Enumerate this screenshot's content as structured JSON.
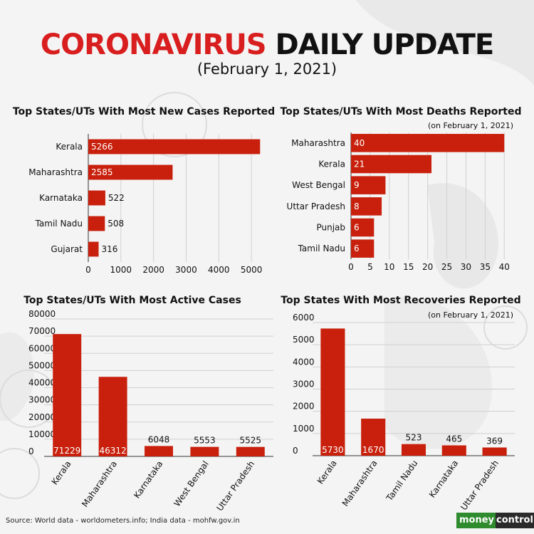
{
  "header": {
    "title_red": "CORONAVIRUS",
    "title_black": "DAILY UPDATE",
    "subtitle": "(February 1, 2021)"
  },
  "footer": {
    "source": "Source: World data - worldometers.info; India data - mohfw.gov.in",
    "logo_money": "money",
    "logo_control": "control"
  },
  "colors": {
    "bar": "#c8200c",
    "accent": "#d81e1e",
    "grid": "#d0d0d0"
  },
  "chart_data": [
    {
      "id": "new-cases",
      "type": "bar",
      "orientation": "horizontal",
      "title": "Top States/UTs With Most New Cases Reported",
      "note": "",
      "categories": [
        "Kerala",
        "Maharashtra",
        "Karnataka",
        "Tamil Nadu",
        "Gujarat"
      ],
      "values": [
        5266,
        2585,
        522,
        508,
        316
      ],
      "value_labels": [
        "5266",
        "2585",
        "522",
        "508",
        "316"
      ],
      "xlim": [
        0,
        5500
      ],
      "ticks": [
        0,
        1000,
        2000,
        3000,
        4000,
        5000
      ],
      "tick_labels": [
        "0",
        "1000",
        "2000",
        "3000",
        "4000",
        "5000"
      ],
      "grid": true
    },
    {
      "id": "deaths",
      "type": "bar",
      "orientation": "horizontal",
      "title": "Top States/UTs With Most Deaths Reported",
      "note": "(on February 1, 2021)",
      "categories": [
        "Maharashtra",
        "Kerala",
        "West Bengal",
        "Uttar Pradesh",
        "Punjab",
        "Tamil Nadu"
      ],
      "values": [
        40,
        21,
        9,
        8,
        6,
        6
      ],
      "value_labels": [
        "40",
        "21",
        "9",
        "8",
        "6",
        "6"
      ],
      "xlim": [
        0,
        42
      ],
      "ticks": [
        0,
        5,
        10,
        15,
        20,
        25,
        30,
        35,
        40
      ],
      "tick_labels": [
        "0",
        "5",
        "10",
        "15",
        "20",
        "25",
        "30",
        "35",
        "40"
      ],
      "grid": true
    },
    {
      "id": "active-cases",
      "type": "bar",
      "orientation": "vertical",
      "title": "Top States/UTs With Most Active Cases",
      "note": "",
      "categories": [
        "Kerala",
        "Maharashtra",
        "Karnataka",
        "West Bengal",
        "Uttar Pradesh"
      ],
      "values": [
        71229,
        46312,
        6048,
        5553,
        5525
      ],
      "value_labels": [
        "71229",
        "46312",
        "6048",
        "5553",
        "5525"
      ],
      "ylim": [
        0,
        80000
      ],
      "ticks": [
        0,
        10000,
        20000,
        30000,
        40000,
        50000,
        60000,
        70000,
        80000
      ],
      "tick_labels": [
        "0",
        "10000",
        "20000",
        "30000",
        "40000",
        "50000",
        "60000",
        "70000",
        "80000"
      ],
      "grid": true
    },
    {
      "id": "recoveries",
      "type": "bar",
      "orientation": "vertical",
      "title": "Top States With Most Recoveries Reported",
      "note": "(on February 1, 2021)",
      "categories": [
        "Kerala",
        "Maharashtra",
        "Tamil Nadu",
        "Karnataka",
        "Uttar Pradesh"
      ],
      "values": [
        5730,
        1670,
        523,
        465,
        369
      ],
      "value_labels": [
        "5730",
        "1670",
        "523",
        "465",
        "369"
      ],
      "ylim": [
        0,
        6000
      ],
      "ticks": [
        0,
        1000,
        2000,
        3000,
        4000,
        5000,
        6000
      ],
      "tick_labels": [
        "0",
        "1000",
        "2000",
        "3000",
        "4000",
        "5000",
        "6000"
      ],
      "grid": true
    }
  ]
}
